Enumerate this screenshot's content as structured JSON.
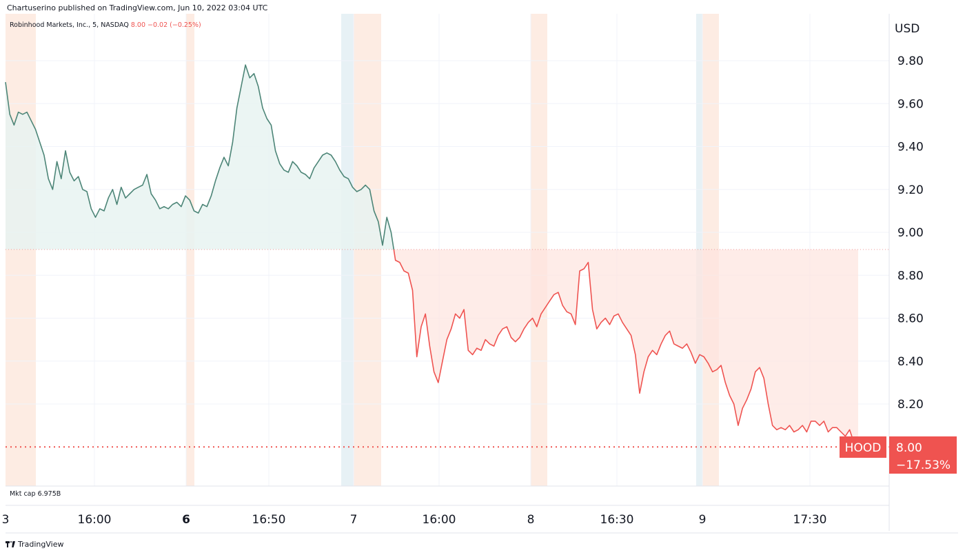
{
  "publisher_line": "Chartuserino published on TradingView.com, Jun 10, 2022 03:04 UTC",
  "legend": {
    "symbol": "Robinhood Markets, Inc., 5, NASDAQ",
    "values": "8.00  −0.02 (−0.25%)"
  },
  "mkt_cap": {
    "label": "Mkt cap",
    "value": "6.975B"
  },
  "brand": "TradingView",
  "chart_data": {
    "type": "line",
    "currency_label": "USD",
    "ylim": [
      7.9,
      10.05
    ],
    "y_ticks": [
      9.8,
      9.6,
      9.4,
      9.2,
      9.0,
      8.8,
      8.6,
      8.4,
      8.2
    ],
    "y_tick_labels": [
      "9.80",
      "9.60",
      "9.40",
      "9.20",
      "9.00",
      "8.80",
      "8.60",
      "8.40",
      "8.20"
    ],
    "x_tick_labels": [
      {
        "label": "3",
        "bold": false
      },
      {
        "label": "16:00",
        "bold": false
      },
      {
        "label": "6",
        "bold": true
      },
      {
        "label": "16:50",
        "bold": false
      },
      {
        "label": "7",
        "bold": false
      },
      {
        "label": "16:00",
        "bold": false
      },
      {
        "label": "8",
        "bold": false
      },
      {
        "label": "16:30",
        "bold": false
      },
      {
        "label": "9",
        "bold": false
      },
      {
        "label": "17:30",
        "bold": false
      }
    ],
    "baseline": 8.92,
    "last_price_line": 8.0,
    "price_tag": {
      "symbol": "HOOD",
      "price": "8.00",
      "change": "−17.53%"
    },
    "colors": {
      "up": "#4c8577",
      "down": "#ef5350",
      "up_fill": "#e8f3f1",
      "down_fill": "#fde4de",
      "session_orange": "#fdece3",
      "session_blue": "#e7f1f5"
    },
    "series": {
      "values": [
        9.7,
        9.55,
        9.5,
        9.56,
        9.55,
        9.56,
        9.52,
        9.48,
        9.42,
        9.36,
        9.25,
        9.2,
        9.33,
        9.25,
        9.38,
        9.28,
        9.24,
        9.26,
        9.2,
        9.19,
        9.11,
        9.07,
        9.11,
        9.1,
        9.16,
        9.2,
        9.13,
        9.21,
        9.16,
        9.18,
        9.2,
        9.21,
        9.22,
        9.27,
        9.18,
        9.15,
        9.11,
        9.12,
        9.11,
        9.13,
        9.14,
        9.12,
        9.17,
        9.15,
        9.1,
        9.09,
        9.13,
        9.12,
        9.17,
        9.24,
        9.3,
        9.35,
        9.31,
        9.42,
        9.58,
        9.68,
        9.78,
        9.72,
        9.74,
        9.68,
        9.58,
        9.53,
        9.5,
        9.38,
        9.32,
        9.29,
        9.28,
        9.33,
        9.31,
        9.28,
        9.27,
        9.25,
        9.3,
        9.33,
        9.36,
        9.37,
        9.36,
        9.33,
        9.29,
        9.26,
        9.25,
        9.21,
        9.19,
        9.2,
        9.22,
        9.2,
        9.1,
        9.05,
        8.94,
        9.07,
        9.0,
        8.87,
        8.86,
        8.82,
        8.81,
        8.73,
        8.42,
        8.56,
        8.62,
        8.47,
        8.35,
        8.3,
        8.4,
        8.5,
        8.55,
        8.62,
        8.6,
        8.64,
        8.45,
        8.43,
        8.46,
        8.45,
        8.5,
        8.48,
        8.47,
        8.52,
        8.55,
        8.56,
        8.51,
        8.49,
        8.51,
        8.55,
        8.58,
        8.6,
        8.56,
        8.62,
        8.65,
        8.68,
        8.71,
        8.72,
        8.66,
        8.63,
        8.62,
        8.57,
        8.82,
        8.83,
        8.86,
        8.64,
        8.55,
        8.58,
        8.6,
        8.57,
        8.61,
        8.62,
        8.58,
        8.55,
        8.52,
        8.43,
        8.25,
        8.35,
        8.42,
        8.45,
        8.43,
        8.48,
        8.52,
        8.54,
        8.48,
        8.47,
        8.46,
        8.48,
        8.44,
        8.39,
        8.43,
        8.42,
        8.39,
        8.35,
        8.36,
        8.38,
        8.3,
        8.24,
        8.2,
        8.1,
        8.18,
        8.22,
        8.27,
        8.35,
        8.37,
        8.32,
        8.2,
        8.1,
        8.08,
        8.09,
        8.08,
        8.1,
        8.07,
        8.08,
        8.1,
        8.07,
        8.12,
        8.12,
        8.1,
        8.12,
        8.07,
        8.09,
        8.09,
        8.07,
        8.05,
        8.08,
        8.02,
        8.0
      ]
    }
  }
}
